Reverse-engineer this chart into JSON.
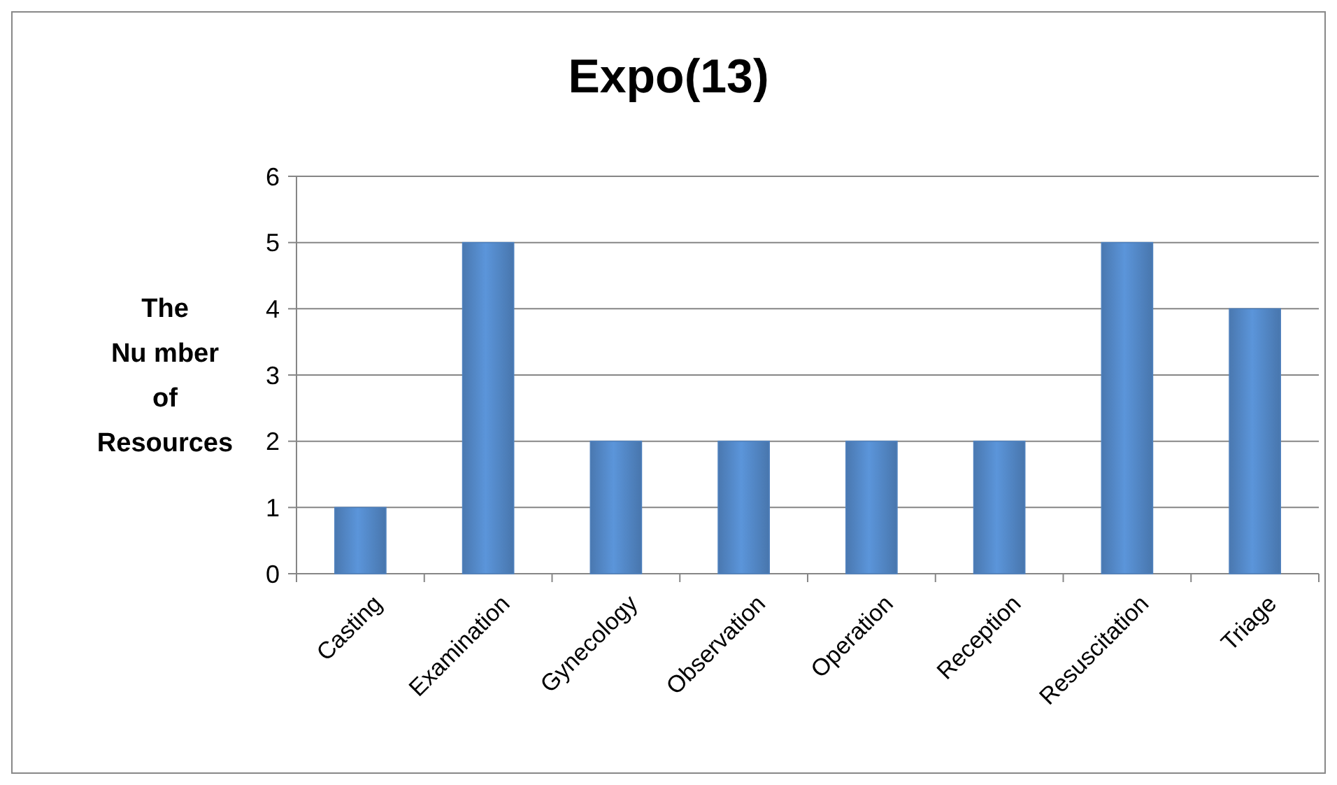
{
  "chart_data": {
    "type": "bar",
    "title": "Expo(13)",
    "ylabel": "The\nNu mber\nof\nResources",
    "categories": [
      "Casting",
      "Examination",
      "Gynecology",
      "Observation",
      "Operation",
      "Reception",
      "Resuscitation",
      "Triage"
    ],
    "values": [
      1,
      5,
      2,
      2,
      2,
      2,
      5,
      4
    ],
    "color": "#4f81bd",
    "ylim": [
      0,
      6
    ],
    "yticks": [
      0,
      1,
      2,
      3,
      4,
      5,
      6
    ],
    "grid": "y"
  }
}
